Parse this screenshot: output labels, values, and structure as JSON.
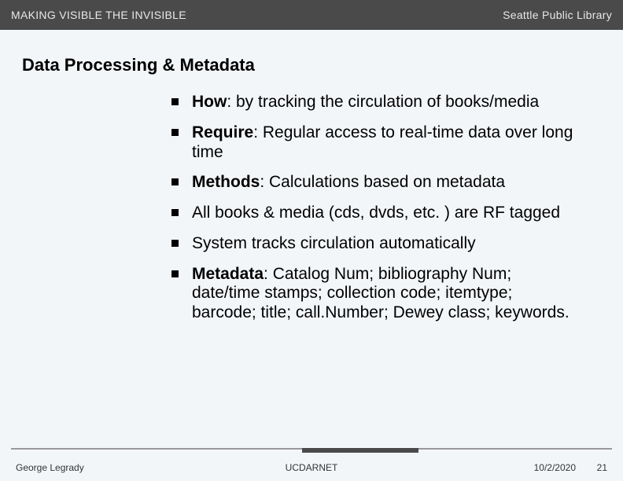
{
  "header": {
    "left": "MAKING VISIBLE THE INVISIBLE",
    "right": "Seattle Public Library"
  },
  "title": "Data Processing & Metadata",
  "bullets": [
    {
      "lead": "How",
      "rest": ": by tracking the circulation of books/media"
    },
    {
      "lead": "Require",
      "rest": ": Regular access to real-time data over long time"
    },
    {
      "lead": "Methods",
      "rest": ": Calculations based on metadata"
    },
    {
      "lead": "",
      "rest": "All books & media (cds, dvds, etc. ) are RF tagged"
    },
    {
      "lead": "",
      "rest": "System tracks circulation automatically"
    },
    {
      "lead": "Metadata",
      "rest": ": Catalog Num; bibliography Num; date/time stamps; collection code; itemtype; barcode; title; call.Number; Dewey class; keywords."
    }
  ],
  "footer": {
    "author": "George Legrady",
    "center": "UCDARNET",
    "date": "10/2/2020",
    "page": "21"
  },
  "colors": {
    "header_bg": "#4a4a4a",
    "page_bg": "#f3f6f9",
    "text": "#000000"
  }
}
